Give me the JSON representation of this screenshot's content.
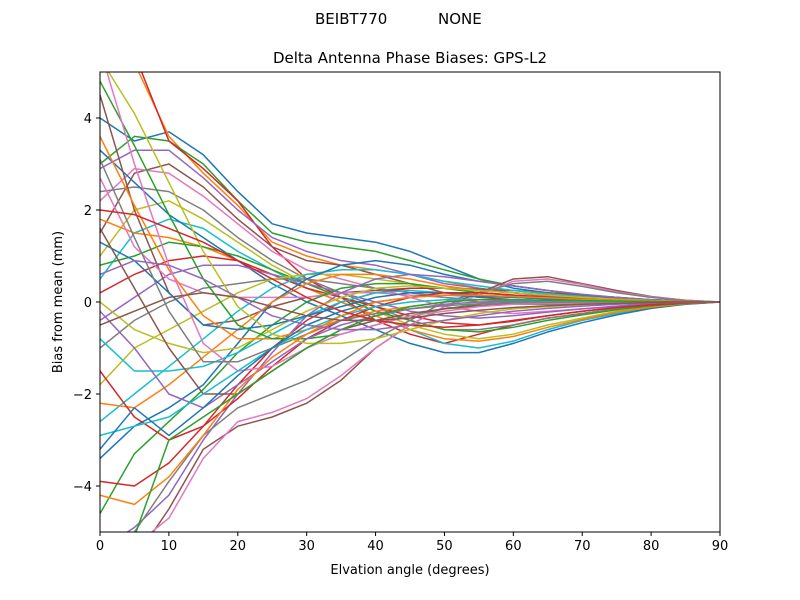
{
  "chart_data": {
    "type": "line",
    "suptitle_left": "BEIBT770",
    "suptitle_right": "NONE",
    "title": "Delta Antenna Phase Biases: GPS-L2",
    "xlabel": "Elvation angle (degrees)",
    "ylabel": "Bias from mean (mm)",
    "xlim": [
      0,
      90
    ],
    "ylim": [
      -5,
      5
    ],
    "xticks": [
      0,
      10,
      20,
      30,
      40,
      50,
      60,
      70,
      80,
      90
    ],
    "xtick_labels": [
      "0",
      "10",
      "20",
      "30",
      "40",
      "50",
      "60",
      "70",
      "80",
      "90"
    ],
    "yticks": [
      -4,
      -2,
      0,
      2,
      4
    ],
    "ytick_labels": [
      "−4",
      "−2",
      "0",
      "2",
      "4"
    ],
    "grid": false,
    "legend": "none",
    "x": [
      0,
      5,
      10,
      15,
      20,
      25,
      30,
      35,
      40,
      45,
      50,
      55,
      60,
      65,
      70,
      75,
      80,
      85,
      90
    ],
    "colors": [
      "#1f77b4",
      "#ff7f0e",
      "#2ca02c",
      "#d62728",
      "#9467bd",
      "#8c564b",
      "#e377c2",
      "#7f7f7f",
      "#bcbd22",
      "#17becf"
    ],
    "series": [
      {
        "values": [
          4.0,
          3.5,
          3.7,
          3.2,
          2.4,
          1.7,
          1.5,
          1.4,
          1.3,
          1.1,
          0.8,
          0.5,
          0.3,
          0.2,
          0.15,
          0.1,
          0.05,
          0.02,
          0.0
        ]
      },
      {
        "values": [
          5.8,
          5.2,
          3.6,
          2.8,
          2.1,
          1.3,
          1.0,
          0.8,
          0.7,
          0.6,
          0.45,
          0.3,
          0.2,
          0.15,
          0.1,
          0.07,
          0.04,
          0.02,
          0.0
        ]
      },
      {
        "values": [
          3.0,
          3.6,
          3.5,
          3.0,
          2.2,
          1.5,
          1.3,
          1.2,
          1.1,
          0.9,
          0.7,
          0.5,
          0.35,
          0.25,
          0.15,
          0.1,
          0.05,
          0.02,
          0.0
        ]
      },
      {
        "values": [
          5.6,
          5.4,
          3.5,
          2.9,
          2.2,
          1.2,
          0.5,
          0.1,
          -0.4,
          -0.7,
          -0.9,
          -0.7,
          -0.5,
          -0.35,
          -0.25,
          -0.15,
          -0.08,
          -0.03,
          0.0
        ]
      },
      {
        "values": [
          2.9,
          3.3,
          3.3,
          2.7,
          2.0,
          1.4,
          1.1,
          0.9,
          0.8,
          0.6,
          0.4,
          0.3,
          0.2,
          0.12,
          0.08,
          0.05,
          0.03,
          0.01,
          0.0
        ]
      },
      {
        "values": [
          1.5,
          2.8,
          3.0,
          2.5,
          1.8,
          1.2,
          0.9,
          0.8,
          0.6,
          0.4,
          0.2,
          0.1,
          0.05,
          0.03,
          0.02,
          0.01,
          0.0,
          0.0,
          0.0
        ]
      },
      {
        "values": [
          2.2,
          2.9,
          2.8,
          2.3,
          1.7,
          1.1,
          0.7,
          0.5,
          0.3,
          0.1,
          -0.1,
          -0.2,
          -0.25,
          -0.2,
          -0.15,
          -0.1,
          -0.05,
          -0.02,
          0.0
        ]
      },
      {
        "values": [
          2.4,
          2.5,
          2.4,
          2.0,
          1.4,
          0.9,
          0.5,
          0.2,
          -0.1,
          -0.4,
          -0.6,
          -0.6,
          -0.5,
          -0.35,
          -0.25,
          -0.15,
          -0.08,
          -0.03,
          0.0
        ]
      },
      {
        "values": [
          1.0,
          2.0,
          2.2,
          1.8,
          1.3,
          0.8,
          0.4,
          0.1,
          -0.2,
          -0.5,
          -0.7,
          -0.8,
          -0.7,
          -0.5,
          -0.35,
          -0.2,
          -0.1,
          -0.04,
          0.0
        ]
      },
      {
        "values": [
          0.5,
          1.5,
          1.8,
          1.6,
          1.1,
          0.7,
          0.3,
          0.0,
          -0.3,
          -0.6,
          -0.9,
          -1.0,
          -0.85,
          -0.6,
          -0.4,
          -0.25,
          -0.12,
          -0.05,
          0.0
        ]
      },
      {
        "values": [
          3.3,
          2.6,
          1.9,
          1.4,
          0.9,
          0.4,
          0.0,
          -0.3,
          -0.6,
          -0.9,
          -1.1,
          -1.1,
          -0.9,
          -0.65,
          -0.45,
          -0.28,
          -0.14,
          -0.05,
          0.0
        ]
      },
      {
        "values": [
          1.8,
          1.5,
          1.4,
          1.2,
          0.9,
          0.6,
          0.3,
          0.0,
          -0.3,
          -0.6,
          -0.8,
          -0.85,
          -0.75,
          -0.55,
          -0.38,
          -0.22,
          -0.11,
          -0.04,
          0.0
        ]
      },
      {
        "values": [
          0.8,
          1.0,
          1.3,
          1.2,
          1.0,
          0.7,
          0.4,
          0.1,
          -0.2,
          -0.4,
          -0.6,
          -0.65,
          -0.55,
          -0.4,
          -0.28,
          -0.17,
          -0.08,
          -0.03,
          0.0
        ]
      },
      {
        "values": [
          0.2,
          0.6,
          0.9,
          1.0,
          0.9,
          0.6,
          0.3,
          0.1,
          -0.1,
          -0.3,
          -0.45,
          -0.5,
          -0.42,
          -0.3,
          -0.2,
          -0.12,
          -0.06,
          -0.02,
          0.0
        ]
      },
      {
        "values": [
          -0.4,
          0.1,
          0.6,
          0.8,
          0.8,
          0.6,
          0.4,
          0.2,
          0.0,
          -0.2,
          -0.3,
          -0.35,
          -0.3,
          -0.22,
          -0.15,
          -0.09,
          -0.04,
          -0.01,
          0.0
        ]
      },
      {
        "values": [
          4.5,
          2.0,
          0.2,
          -0.5,
          -0.4,
          -0.1,
          0.1,
          0.2,
          0.25,
          0.3,
          0.3,
          0.28,
          0.25,
          0.2,
          0.15,
          0.1,
          0.05,
          0.02,
          0.0
        ]
      },
      {
        "values": [
          2.7,
          1.2,
          0.5,
          0.2,
          0.1,
          0.1,
          0.1,
          0.2,
          0.2,
          0.15,
          0.1,
          0.05,
          0.02,
          0.0,
          0.0,
          0.0,
          0.0,
          0.0,
          0.0
        ]
      },
      {
        "values": [
          -1.0,
          -0.4,
          0.0,
          0.3,
          0.4,
          0.5,
          0.5,
          0.4,
          0.3,
          0.2,
          0.1,
          0.0,
          -0.05,
          -0.05,
          -0.04,
          -0.03,
          -0.02,
          -0.01,
          0.0
        ]
      },
      {
        "values": [
          -1.8,
          -1.0,
          -0.6,
          -0.2,
          0.2,
          0.5,
          0.6,
          0.6,
          0.5,
          0.4,
          0.3,
          0.2,
          0.15,
          0.1,
          0.06,
          0.04,
          0.02,
          0.01,
          0.0
        ]
      },
      {
        "values": [
          -2.6,
          -2.0,
          -1.4,
          -0.8,
          -0.2,
          0.3,
          0.6,
          0.7,
          0.7,
          0.6,
          0.45,
          0.35,
          0.25,
          0.18,
          0.12,
          0.07,
          0.04,
          0.01,
          0.0
        ]
      },
      {
        "values": [
          -3.4,
          -2.7,
          -2.3,
          -1.8,
          -0.9,
          0.0,
          0.5,
          0.8,
          0.9,
          0.8,
          0.6,
          0.45,
          0.35,
          0.25,
          0.16,
          0.09,
          0.05,
          0.02,
          0.0
        ]
      },
      {
        "values": [
          -2.2,
          -2.3,
          -1.8,
          -1.2,
          -0.6,
          0.0,
          0.4,
          0.6,
          0.6,
          0.5,
          0.35,
          0.25,
          0.2,
          0.15,
          0.1,
          0.06,
          0.03,
          0.01,
          0.0
        ]
      },
      {
        "values": [
          -4.6,
          -3.3,
          -2.6,
          -1.9,
          -1.1,
          -0.5,
          0.0,
          0.3,
          0.4,
          0.4,
          0.3,
          0.2,
          0.15,
          0.1,
          0.07,
          0.04,
          0.02,
          0.01,
          0.0
        ]
      },
      {
        "values": [
          -3.9,
          -4.0,
          -3.5,
          -2.7,
          -1.8,
          -1.0,
          -0.4,
          0.0,
          0.2,
          0.3,
          0.3,
          0.25,
          0.2,
          0.15,
          0.1,
          0.06,
          0.03,
          0.01,
          0.0
        ]
      },
      {
        "values": [
          -5.4,
          -4.9,
          -4.2,
          -3.0,
          -2.0,
          -1.1,
          -0.3,
          0.2,
          0.5,
          0.6,
          0.55,
          0.45,
          0.35,
          0.25,
          0.17,
          0.1,
          0.05,
          0.02,
          0.0
        ]
      },
      {
        "values": [
          -5.8,
          -5.6,
          -4.5,
          -3.2,
          -2.7,
          -2.5,
          -2.2,
          -1.7,
          -1.0,
          -0.5,
          -0.1,
          0.2,
          0.5,
          0.55,
          0.4,
          0.25,
          0.12,
          0.04,
          0.0
        ]
      },
      {
        "values": [
          -5.5,
          -5.3,
          -4.7,
          -3.4,
          -2.6,
          -2.4,
          -2.1,
          -1.6,
          -1.0,
          -0.5,
          -0.1,
          0.15,
          0.45,
          0.5,
          0.38,
          0.22,
          0.11,
          0.04,
          0.0
        ]
      },
      {
        "values": [
          -5.2,
          -5.0,
          -3.9,
          -2.9,
          -2.3,
          -2.0,
          -1.7,
          -1.3,
          -0.8,
          -0.4,
          0.0,
          0.2,
          0.4,
          0.45,
          0.34,
          0.2,
          0.1,
          0.03,
          0.0
        ]
      },
      {
        "values": [
          0.0,
          -0.6,
          -0.9,
          -1.1,
          -1.0,
          -0.6,
          -0.2,
          0.1,
          0.3,
          0.35,
          0.3,
          0.25,
          0.2,
          0.15,
          0.1,
          0.06,
          0.03,
          0.01,
          0.0
        ]
      },
      {
        "values": [
          -0.8,
          -1.5,
          -1.5,
          -1.4,
          -1.1,
          -0.7,
          -0.3,
          0.0,
          0.2,
          0.25,
          0.2,
          0.15,
          0.1,
          0.07,
          0.05,
          0.03,
          0.01,
          0.0,
          0.0
        ]
      },
      {
        "values": [
          1.3,
          0.9,
          0.2,
          -0.5,
          -0.6,
          -0.5,
          -0.3,
          -0.1,
          0.1,
          0.2,
          0.2,
          0.15,
          0.1,
          0.07,
          0.04,
          0.02,
          0.01,
          0.0,
          0.0
        ]
      },
      {
        "values": [
          3.6,
          2.1,
          0.7,
          -0.3,
          -0.8,
          -0.8,
          -0.6,
          -0.4,
          -0.2,
          -0.1,
          0.0,
          0.05,
          0.05,
          0.04,
          0.03,
          0.02,
          0.01,
          0.0,
          0.0
        ]
      },
      {
        "values": [
          4.8,
          3.4,
          1.9,
          0.5,
          -0.5,
          -0.8,
          -0.8,
          -0.7,
          -0.5,
          -0.3,
          -0.15,
          -0.05,
          0.0,
          0.02,
          0.02,
          0.01,
          0.0,
          0.0,
          0.0
        ]
      },
      {
        "values": [
          -1.5,
          -2.5,
          -3.0,
          -2.7,
          -2.1,
          -1.4,
          -0.8,
          -0.4,
          -0.1,
          0.1,
          0.2,
          0.2,
          0.15,
          0.1,
          0.06,
          0.04,
          0.02,
          0.01,
          0.0
        ]
      },
      {
        "values": [
          -0.2,
          -1.0,
          -2.0,
          -2.3,
          -1.8,
          -1.3,
          -0.8,
          -0.5,
          -0.3,
          -0.15,
          -0.05,
          0.0,
          0.02,
          0.02,
          0.01,
          0.0,
          0.0,
          0.0,
          0.0
        ]
      },
      {
        "values": [
          1.6,
          0.3,
          -1.0,
          -2.0,
          -2.0,
          -1.5,
          -1.0,
          -0.6,
          -0.4,
          -0.25,
          -0.15,
          -0.08,
          -0.04,
          -0.02,
          -0.01,
          0.0,
          0.0,
          0.0,
          0.0
        ]
      },
      {
        "values": [
          5.5,
          3.0,
          0.8,
          -0.9,
          -1.5,
          -1.4,
          -1.0,
          -0.7,
          -0.5,
          -0.3,
          -0.2,
          -0.1,
          -0.05,
          -0.03,
          -0.02,
          -0.01,
          0.0,
          0.0,
          0.0
        ]
      },
      {
        "values": [
          3.1,
          1.4,
          -0.2,
          -1.3,
          -1.3,
          -1.0,
          -0.7,
          -0.4,
          -0.25,
          -0.15,
          -0.08,
          -0.04,
          -0.02,
          -0.01,
          0.0,
          0.0,
          0.0,
          0.0,
          0.0
        ]
      },
      {
        "values": [
          5.3,
          4.1,
          2.6,
          1.1,
          -0.1,
          -0.7,
          -0.9,
          -0.9,
          -0.8,
          -0.6,
          -0.4,
          -0.25,
          -0.15,
          -0.1,
          -0.06,
          -0.03,
          -0.01,
          0.0,
          0.0
        ]
      },
      {
        "values": [
          -2.9,
          -2.7,
          -2.5,
          -2.0,
          -1.5,
          -1.0,
          -0.6,
          -0.3,
          -0.1,
          0.0,
          0.05,
          0.05,
          0.04,
          0.03,
          0.02,
          0.01,
          0.0,
          0.0,
          0.0
        ]
      },
      {
        "values": [
          -3.2,
          -2.3,
          -2.9,
          -2.3,
          -1.6,
          -1.0,
          -0.5,
          -0.2,
          0.0,
          0.1,
          0.15,
          0.12,
          0.1,
          0.07,
          0.05,
          0.03,
          0.01,
          0.0,
          0.0
        ]
      },
      {
        "values": [
          -4.2,
          -4.4,
          -3.8,
          -2.9,
          -1.9,
          -1.2,
          -0.7,
          -0.3,
          0.0,
          0.1,
          0.15,
          0.15,
          0.12,
          0.09,
          0.06,
          0.04,
          0.02,
          0.01,
          0.0
        ]
      },
      {
        "values": [
          -5.7,
          -5.1,
          -3.0,
          -2.5,
          -2.0,
          -1.5,
          -1.0,
          -0.6,
          -0.3,
          -0.1,
          0.0,
          0.05,
          0.05,
          0.04,
          0.03,
          0.02,
          0.01,
          0.0,
          0.0
        ]
      },
      {
        "values": [
          2.0,
          1.9,
          1.6,
          1.3,
          0.9,
          0.5,
          0.1,
          -0.2,
          -0.4,
          -0.5,
          -0.55,
          -0.5,
          -0.4,
          -0.3,
          -0.2,
          -0.12,
          -0.06,
          -0.02,
          0.0
        ]
      },
      {
        "values": [
          0.6,
          0.9,
          0.8,
          0.5,
          0.1,
          -0.3,
          -0.5,
          -0.6,
          -0.6,
          -0.5,
          -0.4,
          -0.3,
          -0.2,
          -0.14,
          -0.09,
          -0.05,
          -0.02,
          -0.01,
          0.0
        ]
      },
      {
        "values": [
          -0.5,
          -0.2,
          0.1,
          0.2,
          0.1,
          -0.1,
          -0.3,
          -0.4,
          -0.4,
          -0.35,
          -0.25,
          -0.18,
          -0.12,
          -0.08,
          -0.05,
          -0.03,
          -0.01,
          0.0,
          0.0
        ]
      }
    ]
  }
}
